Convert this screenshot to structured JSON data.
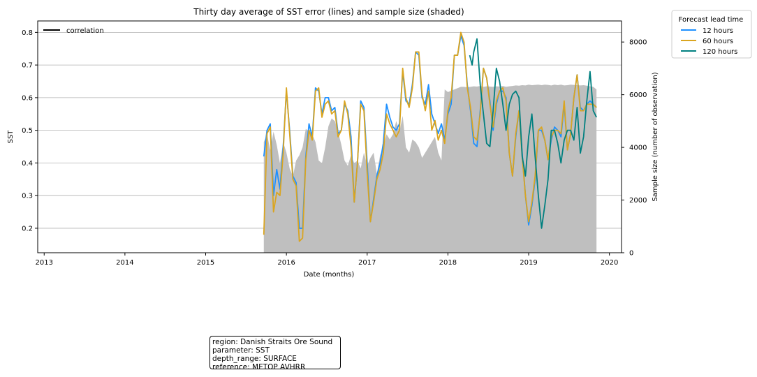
{
  "chart_data": {
    "type": "line",
    "title": "Thirty day average of SST error (lines) and sample size (shaded)",
    "xlabel": "Date (months)",
    "ylabel": "SST",
    "y2label": "Sample size (number of observation)",
    "xlim": [
      2012.92,
      2020.15
    ],
    "ylim": [
      0.125,
      0.835
    ],
    "y2lim": [
      0,
      8800
    ],
    "xticks": [
      2013,
      2014,
      2015,
      2016,
      2017,
      2018,
      2019,
      2020
    ],
    "yticks": [
      0.2,
      0.3,
      0.4,
      0.5,
      0.6,
      0.7,
      0.8
    ],
    "y2ticks": [
      0,
      2000,
      4000,
      6000,
      8000
    ],
    "grid": "horizontal",
    "legend_left": {
      "position": "top-left",
      "entries": [
        {
          "label": "correlation",
          "color": "#000000"
        }
      ]
    },
    "legend_right": {
      "position": "outside-right",
      "title": "Forecast lead time"
    },
    "series": [
      {
        "name": "12 hours",
        "color": "#1e90ff",
        "x": [
          2015.72,
          2015.76,
          2015.8,
          2015.84,
          2015.88,
          2015.92,
          2015.96,
          2016.0,
          2016.04,
          2016.08,
          2016.12,
          2016.16,
          2016.2,
          2016.24,
          2016.28,
          2016.32,
          2016.36,
          2016.4,
          2016.44,
          2016.48,
          2016.52,
          2016.56,
          2016.6,
          2016.64,
          2016.68,
          2016.72,
          2016.76,
          2016.8,
          2016.84,
          2016.88,
          2016.92,
          2016.96,
          2017.0,
          2017.04,
          2017.08,
          2017.12,
          2017.16,
          2017.2,
          2017.24,
          2017.28,
          2017.32,
          2017.36,
          2017.4,
          2017.44,
          2017.48,
          2017.52,
          2017.56,
          2017.6,
          2017.64,
          2017.68,
          2017.72,
          2017.76,
          2017.8,
          2017.84,
          2017.88,
          2017.92,
          2017.96,
          2018.0,
          2018.04,
          2018.08,
          2018.12,
          2018.16,
          2018.2,
          2018.24,
          2018.28,
          2018.32,
          2018.36,
          2018.4,
          2018.44,
          2018.48,
          2018.52,
          2018.56,
          2018.6,
          2018.64,
          2018.68,
          2018.72,
          2018.76,
          2018.8,
          2018.84,
          2018.88,
          2018.92,
          2018.96,
          2019.0,
          2019.04,
          2019.08,
          2019.12,
          2019.16,
          2019.2,
          2019.24,
          2019.28,
          2019.32,
          2019.36,
          2019.4,
          2019.44,
          2019.48,
          2019.52,
          2019.56,
          2019.6,
          2019.64,
          2019.68,
          2019.72,
          2019.76,
          2019.8,
          2019.84
        ],
        "y": [
          0.42,
          0.5,
          0.52,
          0.3,
          0.38,
          0.32,
          0.45,
          0.62,
          0.5,
          0.36,
          0.34,
          0.2,
          0.2,
          0.42,
          0.52,
          0.48,
          0.63,
          0.62,
          0.55,
          0.6,
          0.6,
          0.56,
          0.57,
          0.49,
          0.5,
          0.58,
          0.56,
          0.48,
          0.28,
          0.4,
          0.59,
          0.57,
          0.4,
          0.22,
          0.29,
          0.36,
          0.4,
          0.46,
          0.58,
          0.54,
          0.51,
          0.5,
          0.52,
          0.68,
          0.59,
          0.58,
          0.64,
          0.74,
          0.73,
          0.6,
          0.58,
          0.64,
          0.55,
          0.52,
          0.49,
          0.52,
          0.47,
          0.55,
          0.58,
          0.73,
          0.73,
          0.79,
          0.76,
          0.64,
          0.56,
          0.46,
          0.45,
          0.56,
          0.69,
          0.66,
          0.59,
          0.5,
          0.58,
          0.62,
          0.62,
          0.6,
          0.43,
          0.36,
          0.48,
          0.56,
          0.43,
          0.3,
          0.21,
          0.27,
          0.35,
          0.5,
          0.5,
          0.47,
          0.41,
          0.47,
          0.51,
          0.5,
          0.48,
          0.58,
          0.44,
          0.49,
          0.6,
          0.67,
          0.57,
          0.56,
          0.58,
          0.59,
          0.58,
          0.57
        ]
      },
      {
        "name": "60 hours",
        "color": "#daa520",
        "x": [
          2015.72,
          2015.76,
          2015.8,
          2015.84,
          2015.88,
          2015.92,
          2015.96,
          2016.0,
          2016.04,
          2016.08,
          2016.12,
          2016.16,
          2016.2,
          2016.24,
          2016.28,
          2016.32,
          2016.36,
          2016.4,
          2016.44,
          2016.48,
          2016.52,
          2016.56,
          2016.6,
          2016.64,
          2016.68,
          2016.72,
          2016.76,
          2016.8,
          2016.84,
          2016.88,
          2016.92,
          2016.96,
          2017.0,
          2017.04,
          2017.08,
          2017.12,
          2017.16,
          2017.2,
          2017.24,
          2017.28,
          2017.32,
          2017.36,
          2017.4,
          2017.44,
          2017.48,
          2017.52,
          2017.56,
          2017.6,
          2017.64,
          2017.68,
          2017.72,
          2017.76,
          2017.8,
          2017.84,
          2017.88,
          2017.92,
          2017.96,
          2018.0,
          2018.04,
          2018.08,
          2018.12,
          2018.16,
          2018.2,
          2018.24,
          2018.28,
          2018.32,
          2018.36,
          2018.4,
          2018.44,
          2018.48,
          2018.52,
          2018.56,
          2018.6,
          2018.64,
          2018.68,
          2018.72,
          2018.76,
          2018.8,
          2018.84,
          2018.88,
          2018.92,
          2018.96,
          2019.0,
          2019.04,
          2019.08,
          2019.12,
          2019.16,
          2019.2,
          2019.24,
          2019.28,
          2019.32,
          2019.36,
          2019.4,
          2019.44,
          2019.48,
          2019.52,
          2019.56,
          2019.6,
          2019.64,
          2019.68,
          2019.72,
          2019.76,
          2019.8,
          2019.84
        ],
        "y": [
          0.18,
          0.49,
          0.51,
          0.25,
          0.31,
          0.3,
          0.43,
          0.63,
          0.49,
          0.35,
          0.33,
          0.16,
          0.17,
          0.41,
          0.5,
          0.47,
          0.62,
          0.63,
          0.54,
          0.58,
          0.59,
          0.55,
          0.56,
          0.48,
          0.5,
          0.59,
          0.55,
          0.45,
          0.28,
          0.4,
          0.58,
          0.56,
          0.37,
          0.22,
          0.28,
          0.35,
          0.38,
          0.43,
          0.55,
          0.52,
          0.5,
          0.48,
          0.5,
          0.69,
          0.6,
          0.57,
          0.63,
          0.74,
          0.74,
          0.61,
          0.56,
          0.62,
          0.5,
          0.53,
          0.47,
          0.5,
          0.46,
          0.56,
          0.6,
          0.73,
          0.73,
          0.8,
          0.77,
          0.63,
          0.57,
          0.48,
          0.47,
          0.55,
          0.69,
          0.66,
          0.58,
          0.51,
          0.59,
          0.62,
          0.63,
          0.59,
          0.43,
          0.36,
          0.49,
          0.56,
          0.42,
          0.3,
          0.22,
          0.28,
          0.36,
          0.5,
          0.51,
          0.47,
          0.41,
          0.48,
          0.5,
          0.5,
          0.49,
          0.59,
          0.44,
          0.49,
          0.6,
          0.67,
          0.56,
          0.56,
          0.58,
          0.58,
          0.58,
          0.57
        ]
      },
      {
        "name": "120 hours",
        "color": "#008080",
        "x": [
          2018.27,
          2018.3,
          2018.32,
          2018.36,
          2018.4,
          2018.44,
          2018.48,
          2018.52,
          2018.56,
          2018.6,
          2018.64,
          2018.68,
          2018.72,
          2018.76,
          2018.8,
          2018.84,
          2018.88,
          2018.92,
          2018.96,
          2019.0,
          2019.04,
          2019.08,
          2019.12,
          2019.16,
          2019.2,
          2019.24,
          2019.28,
          2019.32,
          2019.36,
          2019.4,
          2019.44,
          2019.48,
          2019.52,
          2019.56,
          2019.6,
          2019.64,
          2019.68,
          2019.72,
          2019.76,
          2019.8,
          2019.84
        ],
        "y": [
          0.73,
          0.7,
          0.74,
          0.78,
          0.64,
          0.55,
          0.46,
          0.45,
          0.56,
          0.69,
          0.65,
          0.58,
          0.5,
          0.58,
          0.61,
          0.62,
          0.6,
          0.42,
          0.36,
          0.48,
          0.55,
          0.42,
          0.3,
          0.2,
          0.27,
          0.35,
          0.5,
          0.5,
          0.46,
          0.4,
          0.47,
          0.5,
          0.5,
          0.47,
          0.57,
          0.43,
          0.48,
          0.59,
          0.68,
          0.56,
          0.54
        ]
      }
    ],
    "sample_size": {
      "label": "sample size (shaded)",
      "color": "#bfbfbf",
      "x": [
        2015.72,
        2015.76,
        2015.8,
        2015.84,
        2015.88,
        2015.92,
        2015.96,
        2016.0,
        2016.04,
        2016.08,
        2016.12,
        2016.16,
        2016.2,
        2016.24,
        2016.28,
        2016.32,
        2016.36,
        2016.4,
        2016.44,
        2016.48,
        2016.52,
        2016.56,
        2016.6,
        2016.64,
        2016.68,
        2016.72,
        2016.76,
        2016.8,
        2016.84,
        2016.88,
        2016.92,
        2016.96,
        2017.0,
        2017.04,
        2017.08,
        2017.12,
        2017.16,
        2017.2,
        2017.24,
        2017.28,
        2017.32,
        2017.36,
        2017.4,
        2017.44,
        2017.48,
        2017.52,
        2017.56,
        2017.6,
        2017.64,
        2017.68,
        2017.72,
        2017.76,
        2017.8,
        2017.84,
        2017.88,
        2017.92,
        2017.96,
        2018.0,
        2018.04,
        2018.08,
        2018.12,
        2018.16,
        2018.2,
        2018.24,
        2018.28,
        2018.32,
        2018.36,
        2018.4,
        2018.44,
        2018.48,
        2018.52,
        2018.56,
        2018.6,
        2018.64,
        2018.68,
        2018.72,
        2018.76,
        2018.8,
        2018.84,
        2018.88,
        2018.92,
        2018.96,
        2019.0,
        2019.04,
        2019.08,
        2019.12,
        2019.16,
        2019.2,
        2019.24,
        2019.28,
        2019.32,
        2019.36,
        2019.4,
        2019.44,
        2019.48,
        2019.52,
        2019.56,
        2019.6,
        2019.64,
        2019.68,
        2019.72,
        2019.76,
        2019.8,
        2019.84
      ],
      "y": [
        4200,
        4500,
        3900,
        4600,
        4100,
        3400,
        4200,
        3800,
        3200,
        2900,
        3500,
        3700,
        4000,
        4700,
        4600,
        4500,
        4200,
        3500,
        3400,
        4000,
        4800,
        5100,
        5000,
        4600,
        4100,
        3500,
        3300,
        3700,
        3400,
        3500,
        3200,
        3800,
        3300,
        3600,
        3800,
        3000,
        3700,
        4000,
        4500,
        4300,
        4500,
        5000,
        4600,
        5200,
        4000,
        3800,
        4300,
        4200,
        4000,
        3600,
        3800,
        4000,
        4200,
        4400,
        3800,
        3500,
        6200,
        6100,
        6150,
        6200,
        6250,
        6300,
        6300,
        6280,
        6300,
        6320,
        6310,
        6330,
        6300,
        6320,
        6310,
        6300,
        6320,
        6310,
        6330,
        6300,
        6320,
        6330,
        6350,
        6340,
        6360,
        6350,
        6380,
        6360,
        6370,
        6380,
        6360,
        6380,
        6370,
        6350,
        6380,
        6360,
        6380,
        6350,
        6360,
        6380,
        6370,
        6360,
        6350,
        6360,
        6340,
        6320,
        6300,
        6200
      ]
    }
  },
  "info_box": {
    "region": "region: Danish Straits Ore Sound",
    "parameter": "parameter: SST",
    "depth_range": "depth_range: SURFACE",
    "reference": "reference: METOP AVHRR"
  }
}
